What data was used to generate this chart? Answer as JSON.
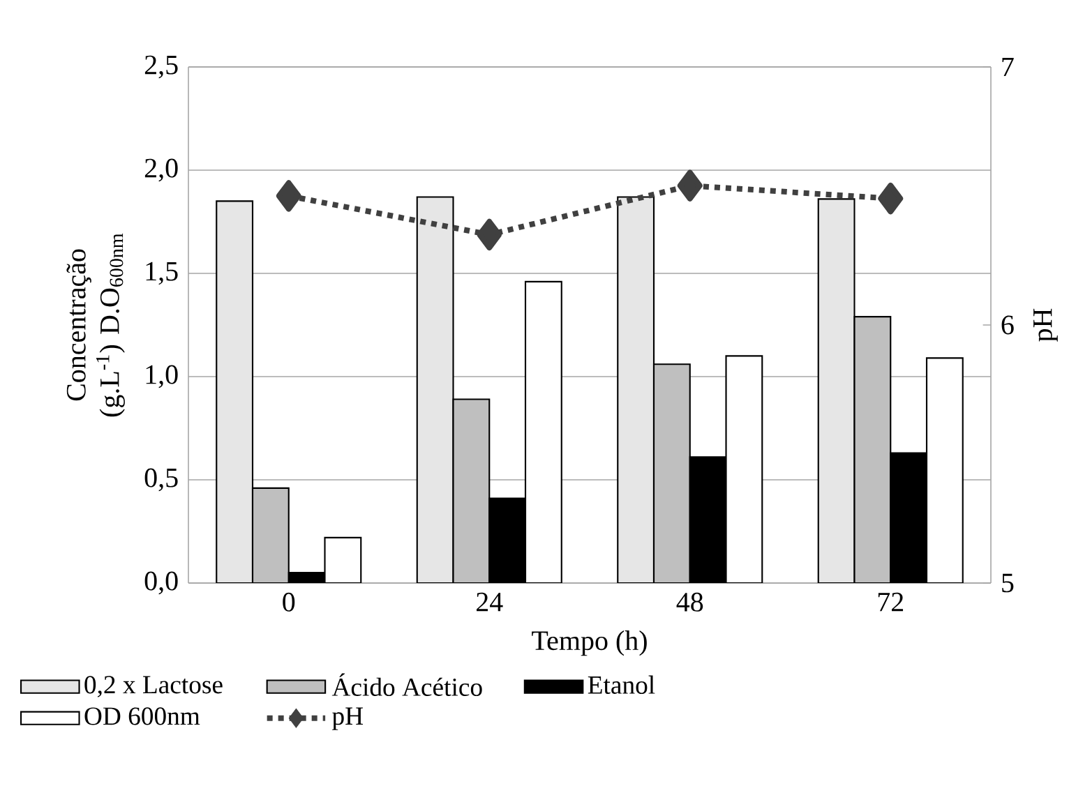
{
  "chart_data": {
    "type": "bar",
    "xlabel": "Tempo (h)",
    "ylabel": "Concentração (g.L$^{-1}$) D.O$_{600nm}$",
    "y2label": "pH",
    "categories": [
      "0",
      "24",
      "48",
      "72"
    ],
    "series": [
      {
        "name": "0,2 x Lactose",
        "color": "#e6e6e6",
        "values": [
          1.85,
          1.87,
          1.87,
          1.86
        ]
      },
      {
        "name": "Ácido Acético",
        "color": "#bfbfbf",
        "values": [
          0.46,
          0.89,
          1.06,
          1.29
        ]
      },
      {
        "name": "Etanol",
        "color": "#000000",
        "values": [
          0.05,
          0.41,
          0.61,
          0.63
        ]
      },
      {
        "name": "OD 600nm",
        "color": "#ffffff",
        "values": [
          0.22,
          1.46,
          1.1,
          1.09
        ]
      },
      {
        "name": "pH",
        "type": "line",
        "axis": "y2",
        "color": "#404040",
        "marker": "diamond",
        "line_style": "dashed",
        "values": [
          6.5,
          6.35,
          6.54,
          6.49
        ]
      }
    ],
    "ylim": [
      0,
      2.5
    ],
    "yticks": [
      {
        "value": 0,
        "label": "0,0"
      },
      {
        "value": 0.5,
        "label": "0,5"
      },
      {
        "value": 1,
        "label": "1,0"
      },
      {
        "value": 1.5,
        "label": "1,5"
      },
      {
        "value": 2,
        "label": "2,0"
      },
      {
        "value": 2.5,
        "label": "2,5"
      }
    ],
    "y2lim": [
      5,
      7
    ],
    "y2ticks": [
      5,
      6,
      7
    ],
    "grid": "y",
    "legend": "bottom"
  }
}
